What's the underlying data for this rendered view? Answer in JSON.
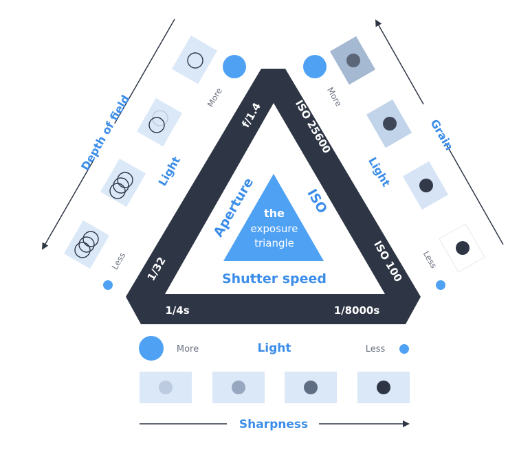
{
  "colors": {
    "dark": "#2e3645",
    "accent": "#4fa1f4",
    "text_blue": "#3c8de8",
    "panel_light": "#dbe8f8",
    "grey_text": "#6b7280"
  },
  "triangle": {
    "aperture_top": "f/1.4",
    "aperture_bottom": "1/32",
    "iso_top": "ISO 25600",
    "iso_bottom": "ISO 100",
    "shutter_left": "1/4s",
    "shutter_right": "1/8000s"
  },
  "center": {
    "line1": "the",
    "line2": "exposure",
    "line3": "triangle"
  },
  "inner_labels": {
    "aperture": "Aperture",
    "iso": "ISO",
    "shutter": "Shutter speed"
  },
  "left_side": {
    "axis_label": "Depth of field",
    "light_label": "Light",
    "more_label": "More",
    "less_label": "Less"
  },
  "right_side": {
    "axis_label": "Grain",
    "light_label": "Light",
    "more_label": "More",
    "less_label": "Less"
  },
  "bottom": {
    "axis_label": "Sharpness",
    "light_label": "Light",
    "more_label": "More",
    "less_label": "Less"
  }
}
